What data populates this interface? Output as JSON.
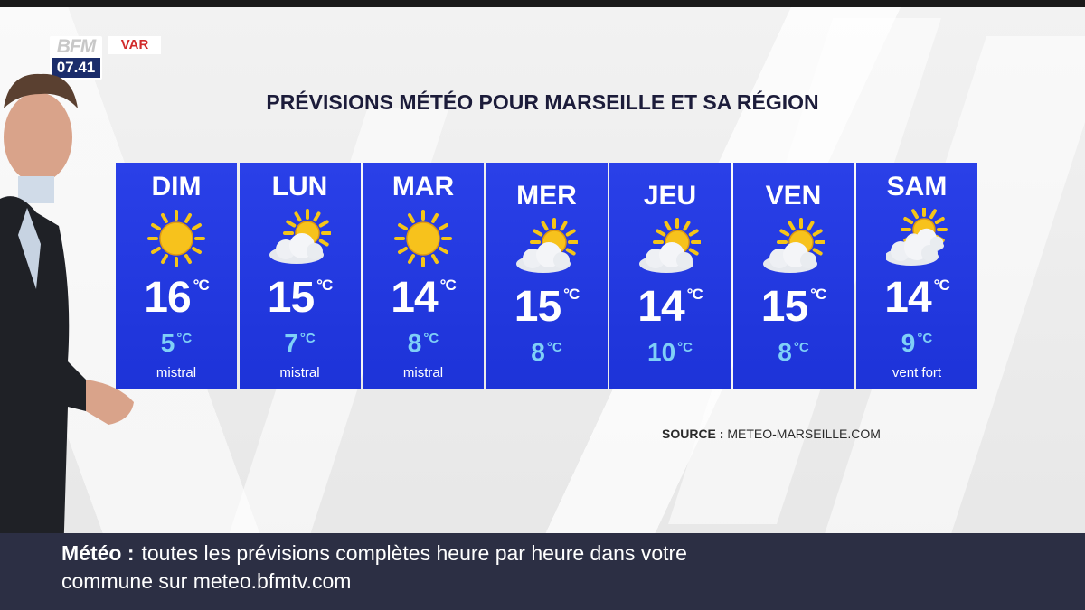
{
  "channel": {
    "logo": "BFM",
    "time": "07.41",
    "region": "VAR"
  },
  "title": "PRÉVISIONS MÉTÉO POUR MARSEILLE ET SA RÉGION",
  "unit": "°C",
  "days": [
    {
      "name": "DIM",
      "icon": "sun-icon",
      "high": "16",
      "low": "5",
      "note": "mistral"
    },
    {
      "name": "LUN",
      "icon": "sun-behind-cloud-icon",
      "high": "15",
      "low": "7",
      "note": "mistral"
    },
    {
      "name": "MAR",
      "icon": "sun-icon",
      "high": "14",
      "low": "8",
      "note": "mistral"
    },
    {
      "name": "MER",
      "icon": "sun-behind-cloud-icon",
      "high": "15",
      "low": "8",
      "note": ""
    },
    {
      "name": "JEU",
      "icon": "sun-behind-cloud-icon",
      "high": "14",
      "low": "10",
      "note": ""
    },
    {
      "name": "VEN",
      "icon": "sun-behind-cloud-icon",
      "high": "15",
      "low": "8",
      "note": ""
    },
    {
      "name": "SAM",
      "icon": "sun-behind-clouds-icon",
      "high": "14",
      "low": "9",
      "note": "vent fort"
    }
  ],
  "source": {
    "label": "SOURCE :",
    "value": "METEO-MARSEILLE.COM"
  },
  "ticker": {
    "heading": "Météo :",
    "line1": "toutes les prévisions complètes heure par heure dans votre",
    "line2": "commune sur meteo.bfmtv.com"
  },
  "colors": {
    "panel": "#1d33d8",
    "low_temp": "#7fd0f7",
    "ticker_bg": "#2c2f44",
    "sun": "#f5c518"
  }
}
